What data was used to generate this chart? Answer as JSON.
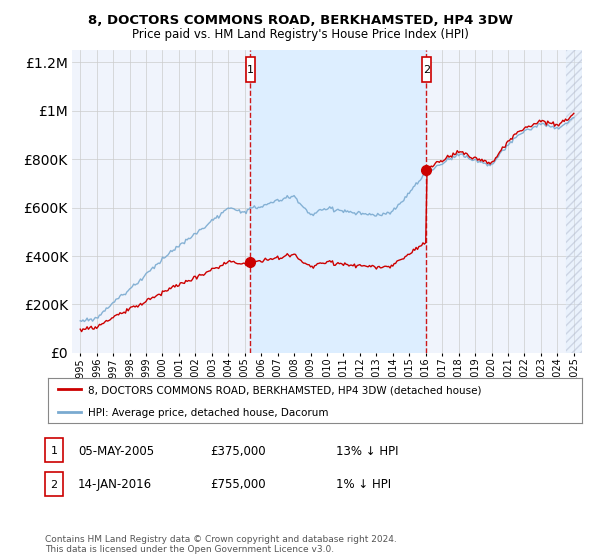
{
  "title": "8, DOCTORS COMMONS ROAD, BERKHAMSTED, HP4 3DW",
  "subtitle": "Price paid vs. HM Land Registry's House Price Index (HPI)",
  "legend_line1": "8, DOCTORS COMMONS ROAD, BERKHAMSTED, HP4 3DW (detached house)",
  "legend_line2": "HPI: Average price, detached house, Dacorum",
  "footer": "Contains HM Land Registry data © Crown copyright and database right 2024.\nThis data is licensed under the Open Government Licence v3.0.",
  "table_rows": [
    {
      "num": "1",
      "date": "05-MAY-2005",
      "price": "£375,000",
      "hpi": "13% ↓ HPI"
    },
    {
      "num": "2",
      "date": "14-JAN-2016",
      "price": "£755,000",
      "hpi": "1% ↓ HPI"
    }
  ],
  "marker1_year": 2005.35,
  "marker1_price": 375000,
  "marker2_year": 2016.04,
  "marker2_price": 755000,
  "plot_bg": "#f0f4fc",
  "shade_bg": "#ddeeff",
  "grid_color": "#cccccc",
  "red_line_color": "#cc0000",
  "blue_line_color": "#7aaad0",
  "ylim_max": 1250000,
  "xlim_start": 1994.5,
  "xlim_end": 2025.5
}
